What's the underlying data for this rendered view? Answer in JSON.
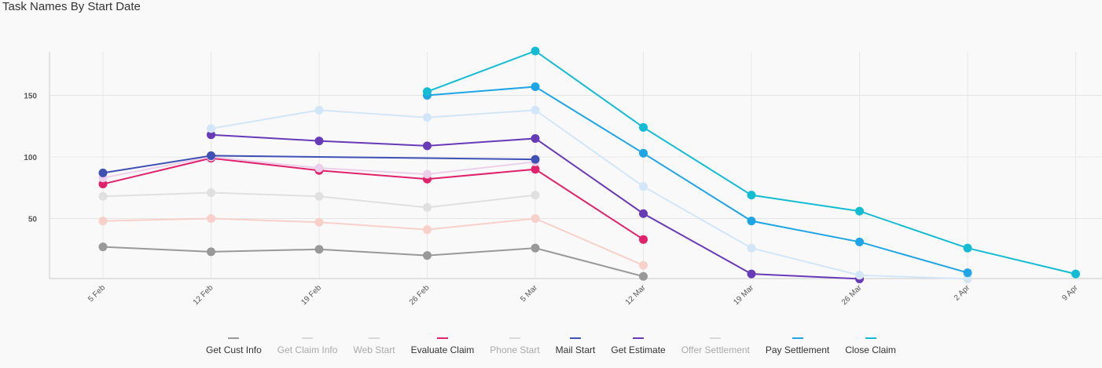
{
  "chart_data": {
    "type": "line",
    "title": "Task Names By Start Date",
    "xlabel": "",
    "ylabel": "",
    "x": [
      "5 Feb",
      "12 Feb",
      "19 Feb",
      "26 Feb",
      "5 Mar",
      "12 Mar",
      "19 Mar",
      "26 Mar",
      "2 Apr",
      "9 Apr"
    ],
    "yticks": [
      50,
      100,
      150
    ],
    "ylim": [
      0,
      185
    ],
    "grid": true,
    "legend_position": "bottom",
    "series": [
      {
        "name": "Get Cust Info",
        "color": "#999999",
        "active": true,
        "values": [
          27,
          23,
          25,
          20,
          26,
          3,
          null,
          null,
          null,
          null
        ]
      },
      {
        "name": "Get Claim Info",
        "color": "#e0e0e0",
        "active": false,
        "values": [
          68,
          71,
          68,
          59,
          69,
          null,
          null,
          null,
          null,
          null
        ]
      },
      {
        "name": "Web Start",
        "color": "#f8d0ca",
        "active": false,
        "values": [
          48,
          50,
          47,
          41,
          50,
          12,
          null,
          null,
          null,
          null
        ]
      },
      {
        "name": "Evaluate Claim",
        "color": "#e0226a",
        "active": true,
        "values": [
          78,
          99,
          89,
          82,
          90,
          33,
          null,
          null,
          null,
          null
        ]
      },
      {
        "name": "Phone Start",
        "color": "#ecd0ea",
        "active": false,
        "values": [
          83,
          100,
          91,
          86,
          96,
          null,
          null,
          null,
          null,
          null
        ]
      },
      {
        "name": "Mail Start",
        "color": "#3f51b5",
        "active": true,
        "values": [
          87,
          101,
          null,
          null,
          98,
          null,
          null,
          null,
          null,
          null
        ]
      },
      {
        "name": "Get Estimate",
        "color": "#673ab7",
        "active": true,
        "values": [
          null,
          118,
          113,
          109,
          115,
          54,
          5,
          1,
          null,
          null
        ]
      },
      {
        "name": "Offer Settlement",
        "color": "#d3e6f7",
        "active": false,
        "values": [
          null,
          123,
          138,
          132,
          138,
          76,
          26,
          4,
          1,
          null
        ]
      },
      {
        "name": "Pay Settlement",
        "color": "#1ea5e6",
        "active": true,
        "values": [
          null,
          null,
          null,
          150,
          157,
          103,
          48,
          31,
          6,
          null
        ]
      },
      {
        "name": "Close Claim",
        "color": "#12bcd2",
        "active": true,
        "values": [
          null,
          null,
          null,
          153,
          186,
          124,
          69,
          56,
          26,
          5
        ]
      }
    ]
  }
}
